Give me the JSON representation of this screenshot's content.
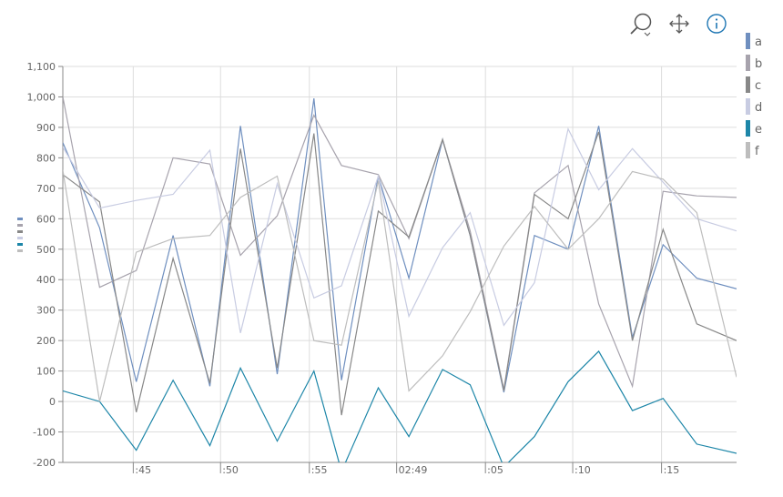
{
  "toolbar": {
    "icons": [
      "zoom-icon",
      "pan-icon",
      "info-icon"
    ],
    "info_color": "#1f77b4",
    "icon_color": "#555555"
  },
  "chart_data": {
    "type": "line",
    "grid": true,
    "legend_placement": "right",
    "y_tick_labels": [
      "1,100",
      "1,000",
      "900",
      "800",
      "700",
      "600",
      "500",
      "400",
      "300",
      "200",
      "100",
      "0",
      "-100",
      "-200"
    ],
    "y_ticks": [
      1100,
      1000,
      900,
      800,
      700,
      600,
      500,
      400,
      300,
      200,
      100,
      0,
      -100,
      -200
    ],
    "ylim": [
      -200,
      1100
    ],
    "x_tick_labels": [
      ":45",
      ":50",
      ":55",
      "02:49",
      ":05",
      ":10",
      ":15"
    ],
    "x_ticks": [
      2.3,
      5.15,
      8.05,
      10.9,
      13.8,
      16.65,
      19.55
    ],
    "xlim": [
      0,
      22
    ],
    "x": [
      0,
      1.2,
      2.4,
      3.6,
      4.8,
      5.8,
      7.0,
      8.2,
      9.1,
      10.3,
      11.3,
      12.4,
      13.3,
      14.4,
      15.4,
      16.5,
      17.5,
      18.6,
      19.6,
      20.7,
      22
    ],
    "series": [
      {
        "name": "a",
        "color": "#6f8fbf",
        "values": [
          850,
          570,
          65,
          545,
          50,
          905,
          90,
          995,
          70,
          740,
          405,
          860,
          545,
          30,
          545,
          500,
          905,
          210,
          515,
          405,
          370
        ]
      },
      {
        "name": "b",
        "color": "#a7a3ad",
        "values": [
          1000,
          375,
          430,
          800,
          780,
          480,
          610,
          940,
          775,
          745,
          535,
          860,
          560,
          40,
          685,
          775,
          320,
          50,
          690,
          675,
          670
        ]
      },
      {
        "name": "c",
        "color": "#888888",
        "values": [
          745,
          655,
          -35,
          470,
          60,
          830,
          110,
          880,
          -45,
          625,
          540,
          860,
          545,
          35,
          680,
          600,
          885,
          200,
          565,
          255,
          200
        ]
      },
      {
        "name": "d",
        "color": "#c8cce2",
        "values": [
          835,
          635,
          660,
          680,
          825,
          225,
          715,
          340,
          380,
          740,
          280,
          505,
          620,
          250,
          390,
          895,
          695,
          830,
          720,
          600,
          560
        ]
      },
      {
        "name": "e",
        "color": "#1d86a8",
        "values": [
          35,
          0,
          -160,
          70,
          -145,
          110,
          -130,
          100,
          -230,
          45,
          -115,
          105,
          55,
          -215,
          -115,
          65,
          165,
          -30,
          10,
          -140,
          -170
        ]
      },
      {
        "name": "f",
        "color": "#bdbdbd",
        "values": [
          760,
          0,
          490,
          535,
          545,
          670,
          740,
          200,
          185,
          725,
          35,
          150,
          295,
          510,
          640,
          500,
          600,
          755,
          730,
          620,
          80
        ]
      }
    ]
  }
}
